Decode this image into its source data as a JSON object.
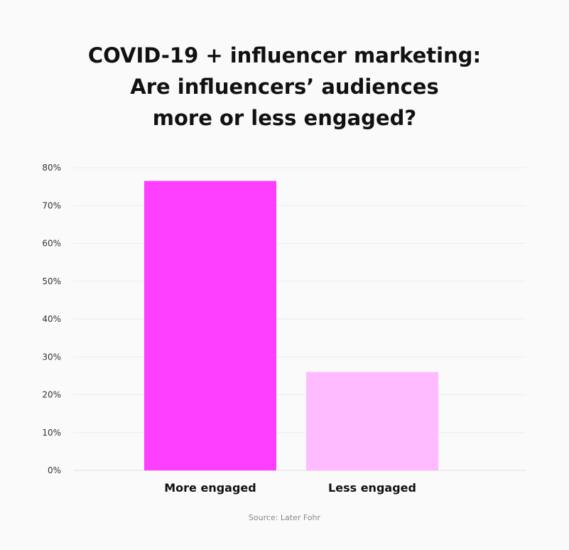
{
  "title_lines": [
    "COVID-19 + influencer marketing:",
    "Are influencers’ audiences",
    "more or less engaged?"
  ],
  "source": "Source: Later Fohr",
  "chart_data": {
    "type": "bar",
    "title": "COVID-19 + influencer marketing: Are influencers’ audiences more or less engaged?",
    "categories": [
      "More engaged",
      "Less engaged"
    ],
    "values": [
      76.5,
      26
    ],
    "colors": [
      "#ff3fff",
      "#ffbbff"
    ],
    "ylim": [
      0,
      80
    ],
    "yticks": [
      0,
      10,
      20,
      30,
      40,
      50,
      60,
      70,
      80
    ],
    "ytick_labels": [
      "0%",
      "10%",
      "20%",
      "30%",
      "40%",
      "50%",
      "60%",
      "70%",
      "80%"
    ],
    "grid": true,
    "xlabel": "",
    "ylabel": ""
  }
}
